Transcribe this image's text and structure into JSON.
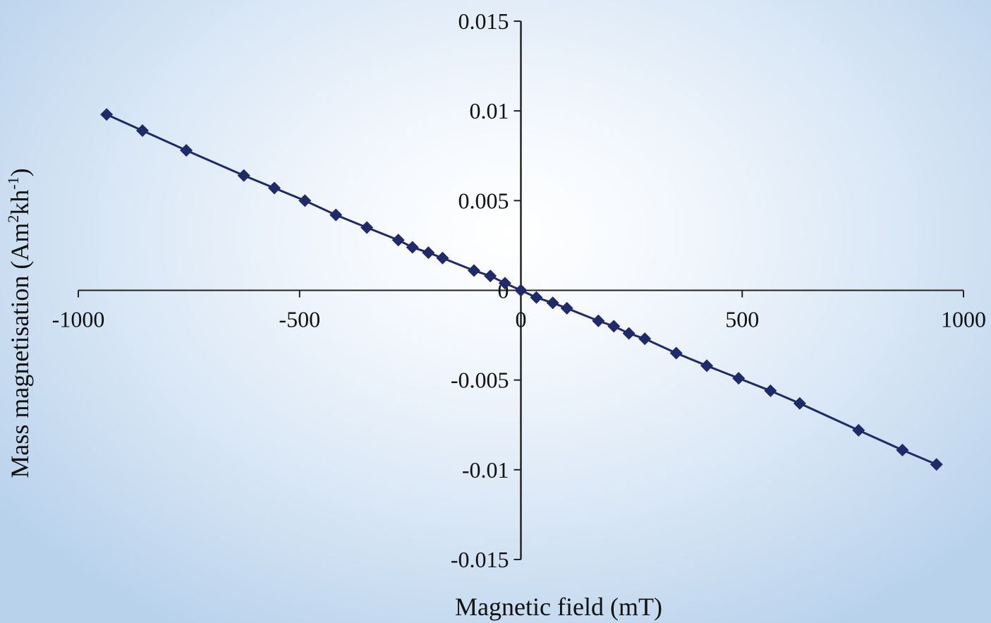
{
  "chart_data": {
    "type": "scatter",
    "title": "",
    "xlabel": "Magnetic field (mT)",
    "ylabel_main": "Mass magnetisation (Am",
    "ylabel_sup1": "2",
    "ylabel_mid": "kh",
    "ylabel_sup2": "-1",
    "ylabel_end": ")",
    "xlim": [
      -1000,
      1000
    ],
    "ylim": [
      -0.015,
      0.015
    ],
    "x_ticks": [
      -1000,
      -500,
      0,
      500,
      1000
    ],
    "x_tick_labels": [
      "-1000",
      "-500",
      "0",
      "500",
      "1000"
    ],
    "y_ticks": [
      0.015,
      0.01,
      0.005,
      0,
      -0.005,
      -0.01,
      -0.015
    ],
    "y_tick_labels": [
      "0.015",
      "0.01",
      "0.005",
      "0",
      "-0.005",
      "-0.01",
      "-0.015"
    ],
    "grid": false,
    "series": [
      {
        "marker": "diamond",
        "line": true,
        "color": "#1f2a6b",
        "x": [
          -936,
          -855,
          -756,
          -626,
          -557,
          -488,
          -418,
          -348,
          -277,
          -245,
          -209,
          -177,
          -106,
          -69,
          -36,
          0,
          35,
          72,
          104,
          175,
          210,
          244,
          280,
          351,
          420,
          492,
          564,
          630,
          763,
          862,
          939
        ],
        "y": [
          0.0098,
          0.0089,
          0.0078,
          0.0064,
          0.0057,
          0.005,
          0.0042,
          0.0035,
          0.0028,
          0.0024,
          0.0021,
          0.0018,
          0.0011,
          0.0008,
          0.0004,
          0.0,
          -0.0004,
          -0.0007,
          -0.001,
          -0.0017,
          -0.002,
          -0.0024,
          -0.0027,
          -0.0035,
          -0.0042,
          -0.0049,
          -0.0056,
          -0.0063,
          -0.0078,
          -0.0089,
          -0.0097
        ]
      }
    ]
  }
}
